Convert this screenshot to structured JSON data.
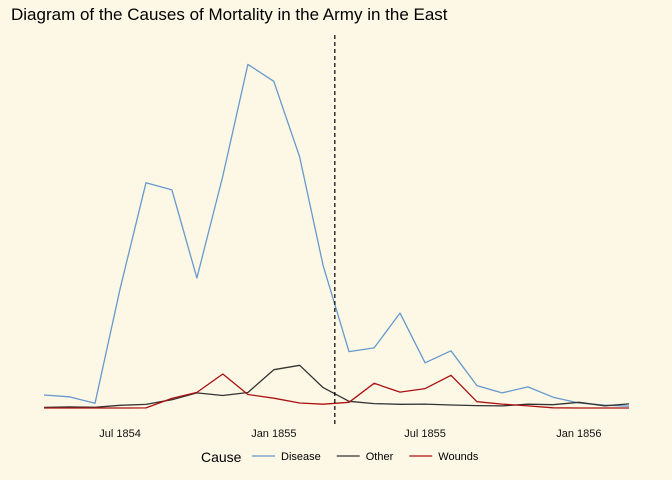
{
  "chart_data": {
    "type": "line",
    "title": "Diagram of the Causes of Mortality in the Army in the East",
    "xlabel": "",
    "ylabel": "",
    "x": [
      "1854-04",
      "1854-05",
      "1854-06",
      "1854-07",
      "1854-08",
      "1854-09",
      "1854-10",
      "1854-11",
      "1854-12",
      "1855-01",
      "1855-02",
      "1855-03",
      "1855-04",
      "1855-05",
      "1855-06",
      "1855-07",
      "1855-08",
      "1855-09",
      "1855-10",
      "1855-11",
      "1855-12",
      "1856-01",
      "1856-02",
      "1856-03"
    ],
    "x_ticks": [
      "Jul 1854",
      "Jan 1855",
      "Jul 1855",
      "Jan 1856"
    ],
    "x_tick_values": [
      "1854-07",
      "1855-01",
      "1855-07",
      "1856-01"
    ],
    "vline_x": "1855-03-15",
    "vline_style": "dashed",
    "y_ticks_shown": false,
    "grid": false,
    "ylim": [
      0,
      3000
    ],
    "series": [
      {
        "name": "Disease",
        "color": "#6699cc",
        "values": [
          110,
          95,
          40,
          1004,
          1904,
          1843,
          1099,
          1960,
          2904,
          2761,
          2120,
          1205,
          477,
          508,
          802,
          382,
          483,
          189,
          128,
          178,
          91,
          42,
          24,
          15
        ]
      },
      {
        "name": "Other",
        "color": "#333333",
        "values": [
          5,
          9,
          6,
          23,
          30,
          70,
          128,
          106,
          131,
          324,
          361,
          172,
          57,
          37,
          31,
          33,
          25,
          20,
          18,
          32,
          28,
          48,
          19,
          35
        ]
      },
      {
        "name": "Wounds",
        "color": "#aa1111",
        "values": [
          0,
          0,
          0,
          0,
          1,
          81,
          132,
          287,
          114,
          83,
          42,
          32,
          48,
          209,
          134,
          164,
          276,
          53,
          33,
          18,
          2,
          0,
          0,
          0
        ]
      }
    ],
    "legend": {
      "title": "Cause",
      "position": "bottom"
    }
  }
}
